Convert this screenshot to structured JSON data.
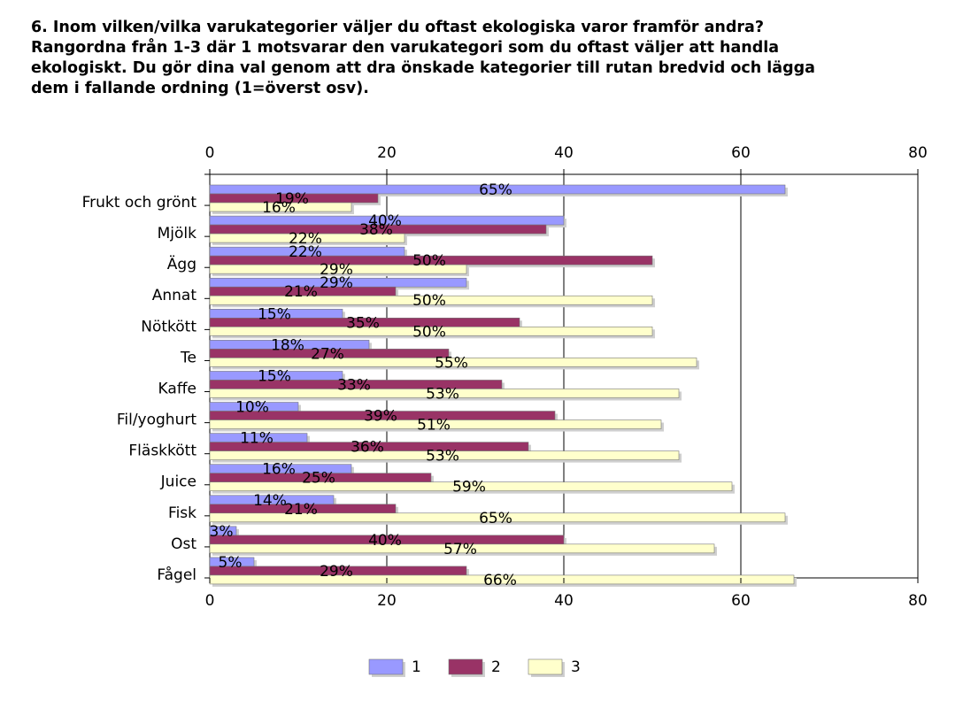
{
  "question": "6. Inom vilken/vilka varukategorier väljer du oftast ekologiska varor framför andra?\nRangordna från 1-3 där 1 motsvarar den varukategori som du oftast väljer att handla\nekologiskt. Du gör dina val genom att dra önskade kategorier till rutan bredvid och lägga\ndem i fallande ordning (1=överst osv).",
  "chart_data": {
    "type": "bar",
    "orientation": "horizontal",
    "categories": [
      "Frukt och grönt",
      "Mjölk",
      "Ägg",
      "Annat",
      "Nötkött",
      "Te",
      "Kaffe",
      "Fil/yoghurt",
      "Fläskkött",
      "Juice",
      "Fisk",
      "Ost",
      "Fågel"
    ],
    "series": [
      {
        "name": "1",
        "color": "#9999ff",
        "values": [
          65,
          40,
          22,
          29,
          15,
          18,
          15,
          10,
          11,
          16,
          14,
          3,
          5
        ],
        "labels": [
          "65%",
          "40%",
          "22%",
          "29%",
          "15%",
          "18%",
          "15%",
          "10%",
          "11%",
          "16%",
          "14%",
          "3%",
          "5%"
        ]
      },
      {
        "name": "2",
        "color": "#993366",
        "values": [
          19,
          38,
          50,
          21,
          35,
          27,
          33,
          39,
          36,
          25,
          21,
          40,
          29
        ],
        "labels": [
          "19%",
          "38%",
          "50%",
          "21%",
          "35%",
          "27%",
          "33%",
          "39%",
          "36%",
          "25%",
          "21%",
          "40%",
          "29%"
        ]
      },
      {
        "name": "3",
        "color": "#ffffcc",
        "values": [
          16,
          22,
          29,
          50,
          50,
          55,
          53,
          51,
          53,
          59,
          65,
          57,
          66
        ],
        "labels": [
          "16%",
          "22%",
          "29%",
          "50%",
          "50%",
          "55%",
          "53%",
          "51%",
          "53%",
          "59%",
          "65%",
          "57%",
          "66%"
        ]
      }
    ],
    "xlim": [
      0,
      80
    ],
    "ticks": [
      "0",
      "20",
      "40",
      "60",
      "80"
    ],
    "tick_values": [
      0,
      20,
      40,
      60,
      80
    ],
    "grid": true,
    "axis_on_top_and_bottom": true,
    "legend_position": "bottom-center"
  }
}
